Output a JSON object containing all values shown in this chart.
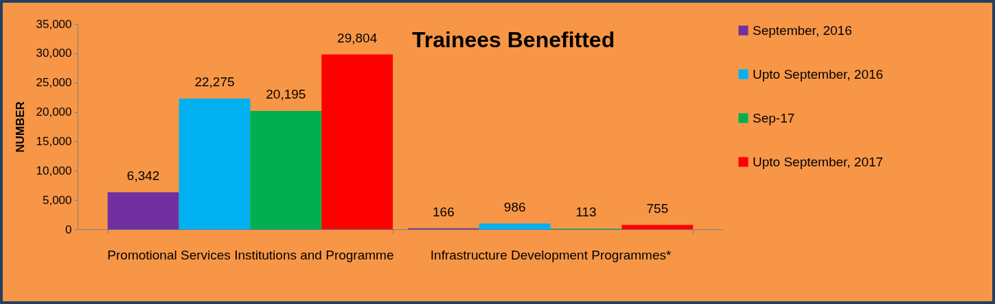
{
  "chart_data": {
    "type": "bar",
    "title": "Trainees Benefitted",
    "ylabel": "NUMBER",
    "categories": [
      "Promotional Services Institutions and Programme",
      "Infrastructure Development Programmes*"
    ],
    "series": [
      {
        "name": "September, 2016",
        "color": "#7030a0",
        "values": [
          6342,
          166
        ],
        "value_labels": [
          "6,342",
          "166"
        ]
      },
      {
        "name": "Upto September, 2016",
        "color": "#00b0f0",
        "values": [
          22275,
          986
        ],
        "value_labels": [
          "22,275",
          "986"
        ]
      },
      {
        "name": "Sep-17",
        "color": "#00b050",
        "values": [
          20195,
          113
        ],
        "value_labels": [
          "20,195",
          "113"
        ]
      },
      {
        "name": "Upto September, 2017",
        "color": "#ff0000",
        "values": [
          29804,
          755
        ],
        "value_labels": [
          "29,804",
          "755"
        ]
      }
    ],
    "ylim": [
      0,
      35000
    ],
    "yticks": [
      0,
      {
        "value": 5000,
        "label": "5,000"
      },
      {
        "value": 10000,
        "label": "10,000"
      },
      {
        "value": 15000,
        "label": "15,000"
      },
      {
        "value": 20000,
        "label": "20,000"
      },
      {
        "value": 25000,
        "label": "25,000"
      },
      {
        "value": 30000,
        "label": "30,000"
      },
      {
        "value": 35000,
        "label": "35,000"
      }
    ],
    "legend": "right",
    "grid": false
  }
}
